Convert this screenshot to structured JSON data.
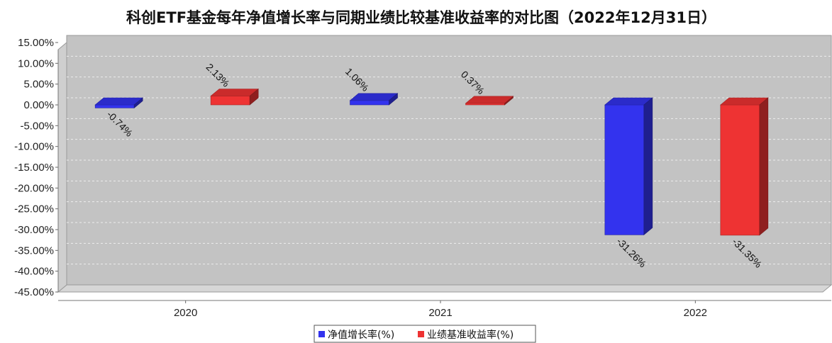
{
  "chart_data": {
    "type": "bar",
    "title": "科创ETF基金每年净值增长率与同期业绩比较基准收益率的对比图（2022年12月31日）",
    "categories": [
      "2020",
      "2021",
      "2022"
    ],
    "series": [
      {
        "name": "净值增长率(%)",
        "values": [
          -0.74,
          1.06,
          -31.26
        ],
        "labels": [
          "-0.74%",
          "1.06%",
          "-31.26%"
        ],
        "color": "#3333ee"
      },
      {
        "name": "业绩基准收益率(%)",
        "values": [
          2.13,
          0.37,
          -31.35
        ],
        "labels": [
          "2.13%",
          "0.37%",
          "-31.35%"
        ],
        "color": "#ee3333"
      }
    ],
    "ylim": [
      -45,
      15
    ],
    "yticks": [
      "15.00%",
      "10.00%",
      "5.00%",
      "0.00%",
      "-5.00%",
      "-10.00%",
      "-15.00%",
      "-20.00%",
      "-25.00%",
      "-30.00%",
      "-35.00%",
      "-40.00%",
      "-45.00%"
    ],
    "grid": true,
    "legend_position": "bottom-center",
    "style": "3d"
  }
}
